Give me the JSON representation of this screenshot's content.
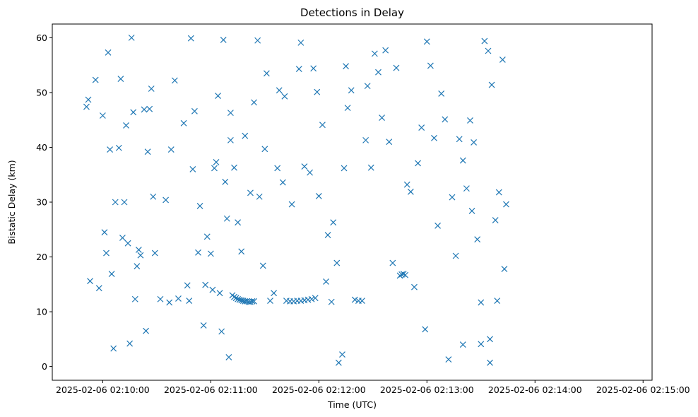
{
  "chart_data": {
    "type": "scatter",
    "title": "Detections in Delay",
    "xlabel": "Time (UTC)",
    "ylabel": "Bistatic Delay (km)",
    "marker": "x",
    "color": "#1f77b4",
    "grid": false,
    "legend": "none",
    "x_range": [
      "2025-02-06 02:09:32",
      "2025-02-06 02:15:05"
    ],
    "ylim": [
      -2.5,
      62.5
    ],
    "x_ticks": [
      "2025-02-06 02:10:00",
      "2025-02-06 02:11:00",
      "2025-02-06 02:12:00",
      "2025-02-06 02:13:00",
      "2025-02-06 02:14:00",
      "2025-02-06 02:15:00"
    ],
    "y_ticks": [
      0,
      10,
      20,
      30,
      40,
      50,
      60
    ],
    "series": [
      {
        "points": [
          [
            "02:09:51",
            47.4
          ],
          [
            "02:09:52",
            48.7
          ],
          [
            "02:09:53",
            15.6
          ],
          [
            "02:09:56",
            52.3
          ],
          [
            "02:09:58",
            14.3
          ],
          [
            "02:10:00",
            45.8
          ],
          [
            "02:10:01",
            24.5
          ],
          [
            "02:10:02",
            20.7
          ],
          [
            "02:10:03",
            57.3
          ],
          [
            "02:10:04",
            39.6
          ],
          [
            "02:10:05",
            16.9
          ],
          [
            "02:10:06",
            3.3
          ],
          [
            "02:10:07",
            30.0
          ],
          [
            "02:10:09",
            39.9
          ],
          [
            "02:10:10",
            52.5
          ],
          [
            "02:10:11",
            23.5
          ],
          [
            "02:10:12",
            30.0
          ],
          [
            "02:10:13",
            44.0
          ],
          [
            "02:10:14",
            22.5
          ],
          [
            "02:10:15",
            4.2
          ],
          [
            "02:10:16",
            60.0
          ],
          [
            "02:10:17",
            46.4
          ],
          [
            "02:10:18",
            12.3
          ],
          [
            "02:10:19",
            18.3
          ],
          [
            "02:10:20",
            21.3
          ],
          [
            "02:10:21",
            20.3
          ],
          [
            "02:10:23",
            46.9
          ],
          [
            "02:10:24",
            6.5
          ],
          [
            "02:10:25",
            39.2
          ],
          [
            "02:10:26",
            47.0
          ],
          [
            "02:10:27",
            50.7
          ],
          [
            "02:10:28",
            31.0
          ],
          [
            "02:10:29",
            20.7
          ],
          [
            "02:10:32",
            12.3
          ],
          [
            "02:10:35",
            30.4
          ],
          [
            "02:10:37",
            11.7
          ],
          [
            "02:10:38",
            39.6
          ],
          [
            "02:10:40",
            52.2
          ],
          [
            "02:10:42",
            12.4
          ],
          [
            "02:10:45",
            44.4
          ],
          [
            "02:10:47",
            14.8
          ],
          [
            "02:10:48",
            12.0
          ],
          [
            "02:10:49",
            59.9
          ],
          [
            "02:10:50",
            36.0
          ],
          [
            "02:10:51",
            46.6
          ],
          [
            "02:10:53",
            20.8
          ],
          [
            "02:10:54",
            29.3
          ],
          [
            "02:10:56",
            7.5
          ],
          [
            "02:10:57",
            14.9
          ],
          [
            "02:10:58",
            23.7
          ],
          [
            "02:11:00",
            20.6
          ],
          [
            "02:11:01",
            14.0
          ],
          [
            "02:11:02",
            36.2
          ],
          [
            "02:11:03",
            37.3
          ],
          [
            "02:11:04",
            49.4
          ],
          [
            "02:11:05",
            13.4
          ],
          [
            "02:11:06",
            6.4
          ],
          [
            "02:11:07",
            59.6
          ],
          [
            "02:11:08",
            33.7
          ],
          [
            "02:11:09",
            27.0
          ],
          [
            "02:11:10",
            1.7
          ],
          [
            "02:11:11",
            46.3
          ],
          [
            "02:11:12",
            13.0
          ],
          [
            "02:11:13",
            12.7
          ],
          [
            "02:11:14",
            12.5
          ],
          [
            "02:11:15",
            12.3
          ],
          [
            "02:11:16",
            12.2
          ],
          [
            "02:11:17",
            12.1
          ],
          [
            "02:11:18",
            12.0
          ],
          [
            "02:11:19",
            11.9
          ],
          [
            "02:11:20",
            11.9
          ],
          [
            "02:11:21",
            11.8
          ],
          [
            "02:11:22",
            11.8
          ],
          [
            "02:11:23",
            11.9
          ],
          [
            "02:11:24",
            11.9
          ],
          [
            "02:11:11",
            41.3
          ],
          [
            "02:11:13",
            36.3
          ],
          [
            "02:11:15",
            26.3
          ],
          [
            "02:11:17",
            21.0
          ],
          [
            "02:11:19",
            42.1
          ],
          [
            "02:11:22",
            31.7
          ],
          [
            "02:11:24",
            48.2
          ],
          [
            "02:11:26",
            59.5
          ],
          [
            "02:11:27",
            31.0
          ],
          [
            "02:11:29",
            18.4
          ],
          [
            "02:11:30",
            39.7
          ],
          [
            "02:11:31",
            53.5
          ],
          [
            "02:11:33",
            12.0
          ],
          [
            "02:11:35",
            13.4
          ],
          [
            "02:11:37",
            36.2
          ],
          [
            "02:11:38",
            50.4
          ],
          [
            "02:11:40",
            33.6
          ],
          [
            "02:11:42",
            12.0
          ],
          [
            "02:11:44",
            11.9
          ],
          [
            "02:11:46",
            11.9
          ],
          [
            "02:11:48",
            12.0
          ],
          [
            "02:11:50",
            12.0
          ],
          [
            "02:11:52",
            12.1
          ],
          [
            "02:11:54",
            12.2
          ],
          [
            "02:11:56",
            12.3
          ],
          [
            "02:11:58",
            12.5
          ],
          [
            "02:11:41",
            49.3
          ],
          [
            "02:11:45",
            29.6
          ],
          [
            "02:11:49",
            54.3
          ],
          [
            "02:11:50",
            59.1
          ],
          [
            "02:11:52",
            36.5
          ],
          [
            "02:11:55",
            35.4
          ],
          [
            "02:11:57",
            54.4
          ],
          [
            "02:11:59",
            50.1
          ],
          [
            "02:12:00",
            31.1
          ],
          [
            "02:12:02",
            44.1
          ],
          [
            "02:12:04",
            15.5
          ],
          [
            "02:12:05",
            24.0
          ],
          [
            "02:12:07",
            11.8
          ],
          [
            "02:12:08",
            26.3
          ],
          [
            "02:12:10",
            18.9
          ],
          [
            "02:12:11",
            0.7
          ],
          [
            "02:12:13",
            2.2
          ],
          [
            "02:12:14",
            36.2
          ],
          [
            "02:12:15",
            54.8
          ],
          [
            "02:12:16",
            47.2
          ],
          [
            "02:12:18",
            50.4
          ],
          [
            "02:12:20",
            12.2
          ],
          [
            "02:12:22",
            12.0
          ],
          [
            "02:12:24",
            12.0
          ],
          [
            "02:12:26",
            41.3
          ],
          [
            "02:12:27",
            51.2
          ],
          [
            "02:12:29",
            36.3
          ],
          [
            "02:12:31",
            57.1
          ],
          [
            "02:12:33",
            53.7
          ],
          [
            "02:12:35",
            45.4
          ],
          [
            "02:12:37",
            57.7
          ],
          [
            "02:12:39",
            41.0
          ],
          [
            "02:12:41",
            18.9
          ],
          [
            "02:12:43",
            54.5
          ],
          [
            "02:12:45",
            16.6
          ],
          [
            "02:12:46",
            16.8
          ],
          [
            "02:12:47",
            16.9
          ],
          [
            "02:12:48",
            16.7
          ],
          [
            "02:12:49",
            33.2
          ],
          [
            "02:12:51",
            31.9
          ],
          [
            "02:12:53",
            14.5
          ],
          [
            "02:12:55",
            37.1
          ],
          [
            "02:12:57",
            43.6
          ],
          [
            "02:12:59",
            6.8
          ],
          [
            "02:13:00",
            59.3
          ],
          [
            "02:13:02",
            54.9
          ],
          [
            "02:13:04",
            41.7
          ],
          [
            "02:13:06",
            25.7
          ],
          [
            "02:13:08",
            49.8
          ],
          [
            "02:13:10",
            45.1
          ],
          [
            "02:13:12",
            1.3
          ],
          [
            "02:13:14",
            30.9
          ],
          [
            "02:13:16",
            20.2
          ],
          [
            "02:13:18",
            41.5
          ],
          [
            "02:13:20",
            37.6
          ],
          [
            "02:13:22",
            32.5
          ],
          [
            "02:13:24",
            44.9
          ],
          [
            "02:13:26",
            40.9
          ],
          [
            "02:13:28",
            23.2
          ],
          [
            "02:13:30",
            4.1
          ],
          [
            "02:13:32",
            59.4
          ],
          [
            "02:13:34",
            57.6
          ],
          [
            "02:13:36",
            51.4
          ],
          [
            "02:13:38",
            26.7
          ],
          [
            "02:13:40",
            31.8
          ],
          [
            "02:13:42",
            56.0
          ],
          [
            "02:13:43",
            17.8
          ],
          [
            "02:13:44",
            29.6
          ],
          [
            "02:13:39",
            12.0
          ],
          [
            "02:13:35",
            5.0
          ],
          [
            "02:13:35",
            0.7
          ],
          [
            "02:13:30",
            11.7
          ],
          [
            "02:13:25",
            28.4
          ],
          [
            "02:13:20",
            4.0
          ]
        ]
      }
    ]
  }
}
